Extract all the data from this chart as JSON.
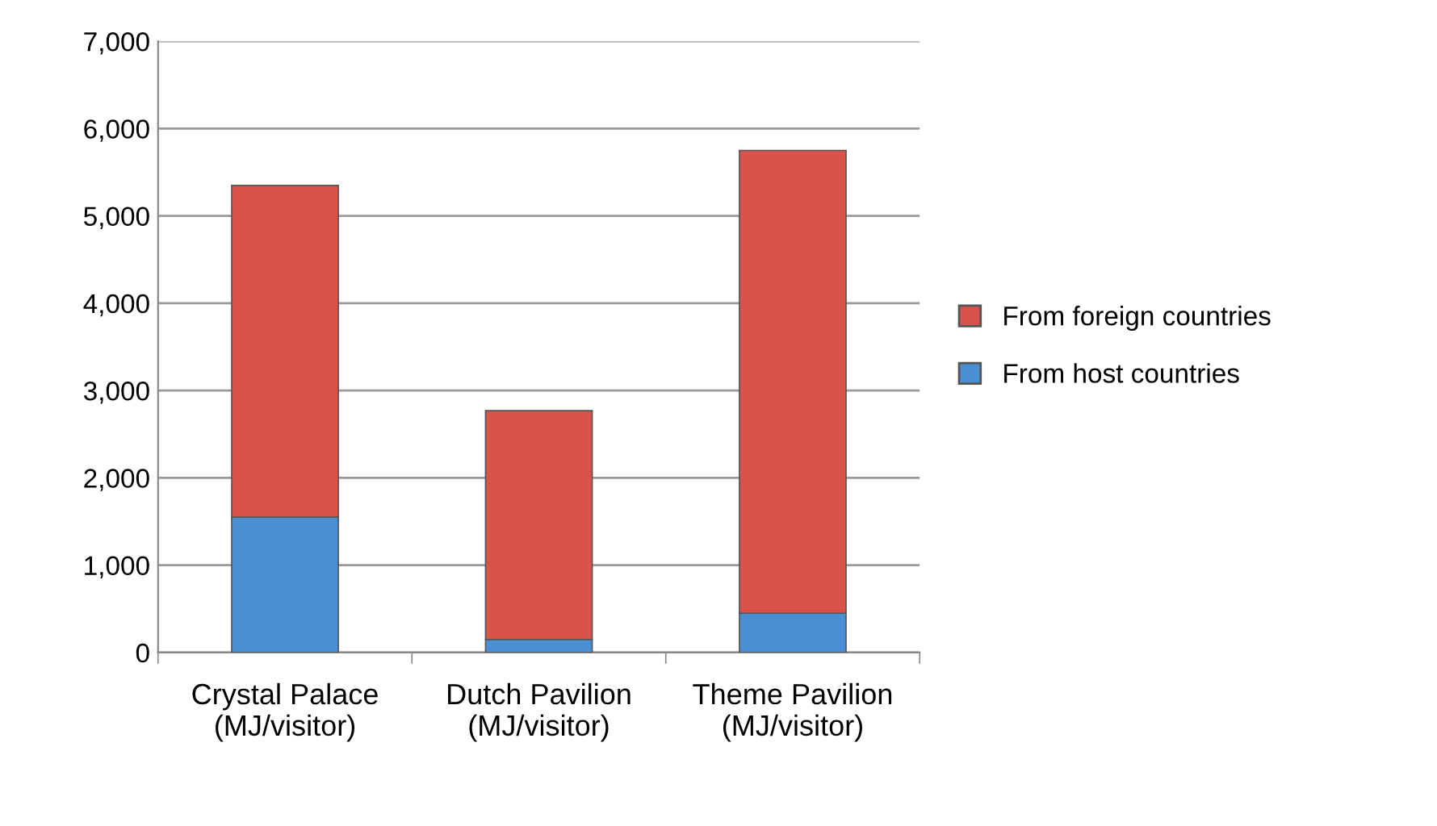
{
  "chart_data": {
    "type": "bar",
    "stacked": true,
    "categories": [
      "Crystal Palace (MJ/visitor)",
      "Dutch Pavilion (MJ/visitor)",
      "Theme Pavilion (MJ/visitor)"
    ],
    "series": [
      {
        "name": "From host countries",
        "color": "#4a8fd4",
        "values": [
          1550,
          150,
          450
        ]
      },
      {
        "name": "From foreign countries",
        "color": "#d9534a",
        "values": [
          3800,
          2620,
          5300
        ]
      }
    ],
    "ylim": [
      0,
      7000
    ],
    "yticks": [
      {
        "value": 0,
        "label": "0"
      },
      {
        "value": 1000,
        "label": "1,000"
      },
      {
        "value": 2000,
        "label": "2,000"
      },
      {
        "value": 3000,
        "label": "3,000"
      },
      {
        "value": 4000,
        "label": "4,000"
      },
      {
        "value": 5000,
        "label": "5,000"
      },
      {
        "value": 6000,
        "label": "6,000"
      },
      {
        "value": 7000,
        "label": "7,000"
      }
    ],
    "grid": "y",
    "legend": "right"
  }
}
